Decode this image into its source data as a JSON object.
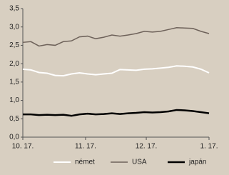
{
  "chart_data": {
    "type": "line",
    "x": [
      0,
      4,
      8,
      12,
      16,
      20,
      24,
      28,
      32,
      36,
      40,
      44,
      48,
      52,
      56,
      60,
      64,
      68,
      72,
      76,
      80,
      84,
      88,
      92
    ],
    "xlim": [
      0,
      92
    ],
    "xticks": [
      {
        "value": 0,
        "label": "10. 17."
      },
      {
        "value": 31,
        "label": "11. 17."
      },
      {
        "value": 61,
        "label": "12. 17."
      },
      {
        "value": 92,
        "label": "1. 17."
      }
    ],
    "ylim": [
      0,
      3.5
    ],
    "yticks": [
      {
        "value": 0,
        "label": "0,0"
      },
      {
        "value": 0.5,
        "label": "0,5"
      },
      {
        "value": 1,
        "label": "1,0"
      },
      {
        "value": 1.5,
        "label": "1,5"
      },
      {
        "value": 2,
        "label": "2,0"
      },
      {
        "value": 2.5,
        "label": "2,5"
      },
      {
        "value": 3,
        "label": "3,0"
      },
      {
        "value": 3.5,
        "label": "3,5"
      }
    ],
    "legend": "bottom",
    "series": [
      {
        "name": "német",
        "color": "#ffffff",
        "values": [
          1.85,
          1.83,
          1.76,
          1.74,
          1.68,
          1.67,
          1.72,
          1.75,
          1.72,
          1.7,
          1.72,
          1.74,
          1.84,
          1.83,
          1.82,
          1.85,
          1.86,
          1.88,
          1.9,
          1.94,
          1.93,
          1.91,
          1.85,
          1.75
        ]
      },
      {
        "name": "USA",
        "color": "#6e625a",
        "values": [
          2.58,
          2.6,
          2.48,
          2.52,
          2.5,
          2.6,
          2.62,
          2.73,
          2.75,
          2.68,
          2.72,
          2.78,
          2.75,
          2.78,
          2.82,
          2.88,
          2.86,
          2.88,
          2.93,
          2.98,
          2.97,
          2.96,
          2.88,
          2.82
        ]
      },
      {
        "name": "japán",
        "color": "#000000",
        "values": [
          0.62,
          0.62,
          0.6,
          0.61,
          0.6,
          0.61,
          0.58,
          0.62,
          0.64,
          0.62,
          0.63,
          0.65,
          0.63,
          0.65,
          0.66,
          0.68,
          0.67,
          0.68,
          0.7,
          0.74,
          0.73,
          0.71,
          0.68,
          0.65
        ]
      }
    ]
  }
}
